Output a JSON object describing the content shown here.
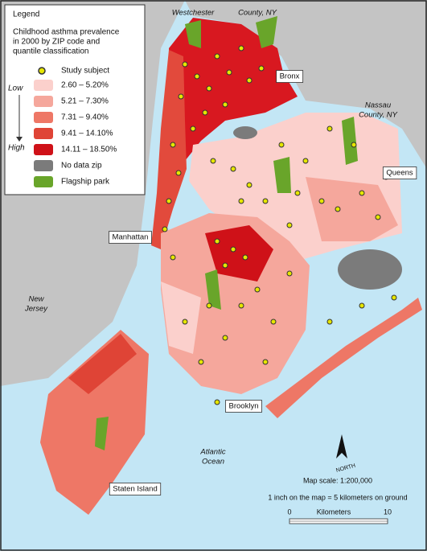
{
  "legend": {
    "title": "Legend",
    "subtitle_lines": [
      "Childhood asthma prevalence",
      "in 2000 by ZIP code and",
      "quantile classification"
    ],
    "study_subject": "Study subject",
    "low": "Low",
    "high": "High",
    "classes": [
      {
        "label": "2.60 – 5.20%",
        "color": "#fbd0cc"
      },
      {
        "label": "5.21 – 7.30%",
        "color": "#f5a79c"
      },
      {
        "label": "7.31 – 9.40%",
        "color": "#ee7766"
      },
      {
        "label": "9.41 – 14.10%",
        "color": "#df4436"
      },
      {
        "label": "14.11 – 18.50%",
        "color": "#cf1118"
      },
      {
        "label": "No data zip",
        "color": "#7b7b7b"
      },
      {
        "label": "Flagship park",
        "color": "#69a52a"
      }
    ]
  },
  "places": {
    "westchester": "Westchester",
    "westchester_county": "County, NY",
    "bronx": "Bronx",
    "nassau": [
      "Nassau",
      "County, NY"
    ],
    "queens": "Queens",
    "manhattan": "Manhattan",
    "new_jersey": [
      "New",
      "Jersey"
    ],
    "brooklyn": "Brooklyn",
    "atlantic": [
      "Atlantic",
      "Ocean"
    ],
    "staten_island": "Staten Island"
  },
  "north": "NORTH",
  "scale": {
    "map_scale": "Map scale: 1:200,000",
    "inch": "1 inch on the map = 5 kilometers on ground",
    "start": 0,
    "unit": "Kilometers",
    "end": 10
  }
}
